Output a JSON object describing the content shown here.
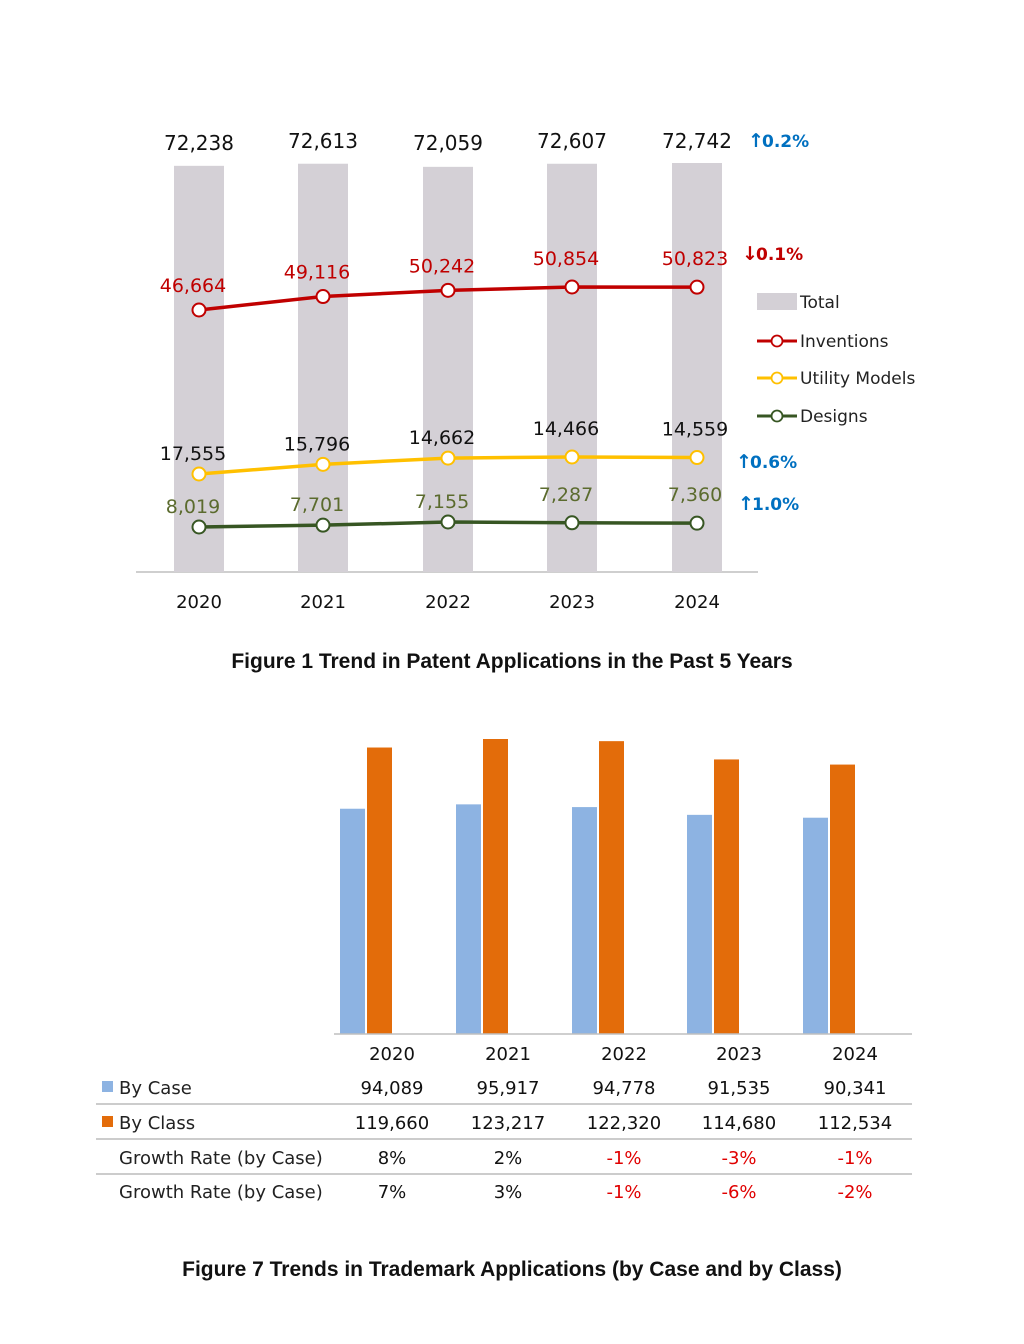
{
  "colors": {
    "total": "#d4d0d6",
    "inventions": "#c00000",
    "utility": "#ffc000",
    "designs": "#375623",
    "designs_label": "#5b6b2e",
    "up_arrow": "#0070c0",
    "down_arrow": "#c00000",
    "by_case": "#8db3e2",
    "by_class": "#e36c0a",
    "negative": "#e00000"
  },
  "figure1": {
    "caption": "Figure 1 Trend in Patent Applications in the Past 5 Years"
  },
  "figure2": {
    "caption": "Figure 7 Trends in Trademark Applications (by Case and by Class)"
  },
  "chart_data": [
    {
      "type": "bar",
      "categories": [
        "2020",
        "2021",
        "2022",
        "2023",
        "2024"
      ],
      "series": [
        {
          "name": "Total",
          "kind": "bar",
          "values": [
            72238,
            72613,
            72059,
            72607,
            72742
          ],
          "labels": [
            "72,238",
            "72,613",
            "72,059",
            "72,607",
            "72,742"
          ],
          "change": {
            "direction": "up",
            "text": "0.2%"
          }
        },
        {
          "name": "Inventions",
          "kind": "line",
          "values": [
            46664,
            49116,
            50242,
            50854,
            50823
          ],
          "labels": [
            "46,664",
            "49,116",
            "50,242",
            "50,854",
            "50,823"
          ],
          "change": {
            "direction": "down",
            "text": "0.1%"
          }
        },
        {
          "name": "Utility Models",
          "kind": "line",
          "values": [
            17555,
            15796,
            14662,
            14466,
            14559
          ],
          "labels": [
            "17,555",
            "15,796",
            "14,662",
            "14,466",
            "14,559"
          ],
          "change": {
            "direction": "up",
            "text": "0.6%"
          }
        },
        {
          "name": "Designs",
          "kind": "line",
          "values": [
            8019,
            7701,
            7155,
            7287,
            7360
          ],
          "labels": [
            "8,019",
            "7,701",
            "7,155",
            "7,287",
            "7,360"
          ],
          "change": {
            "direction": "up",
            "text": "1.0%"
          }
        }
      ],
      "legend": "right",
      "grid": false
    },
    {
      "type": "bar",
      "categories": [
        "2020",
        "2021",
        "2022",
        "2023",
        "2024"
      ],
      "series": [
        {
          "name": "By Case",
          "values": [
            94089,
            95917,
            94778,
            91535,
            90341
          ],
          "labels": [
            "94,089",
            "95,917",
            "94,778",
            "91,535",
            "90,341"
          ]
        },
        {
          "name": "By Class",
          "values": [
            119660,
            123217,
            122320,
            114680,
            112534
          ],
          "labels": [
            "119,660",
            "123,217",
            "122,320",
            "114,680",
            "112,534"
          ]
        }
      ],
      "table_rows": [
        {
          "label": "Growth Rate (by Case)",
          "values": [
            8,
            2,
            -1,
            -3,
            -1
          ],
          "labels": [
            "8%",
            "2%",
            "-1%",
            "-3%",
            "-1%"
          ]
        },
        {
          "label": "Growth Rate (by Case)",
          "values": [
            7,
            3,
            -1,
            -6,
            -2
          ],
          "labels": [
            "7%",
            "3%",
            "-1%",
            "-6%",
            "-2%"
          ]
        }
      ],
      "legend": "data-table",
      "grid": false
    }
  ]
}
